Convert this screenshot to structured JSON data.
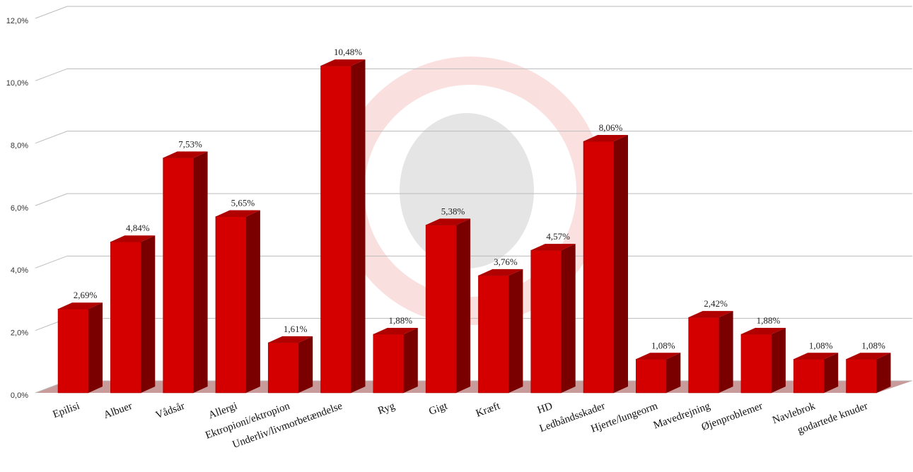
{
  "chart_data": {
    "type": "bar3d",
    "categories": [
      "Epilisi",
      "Albuer",
      "Vådsår",
      "Allergi",
      "Ektropioni/ektropion",
      "Underliv/livmorbetændelse",
      "Ryg",
      "Gigt",
      "Kræft",
      "HD",
      "Ledbåndsskader",
      "Hjerte/lungeorm",
      "Mavedrejning",
      "Øjenproblemer",
      "Navlebrok",
      "godartede knuder"
    ],
    "values": [
      2.69,
      4.84,
      7.53,
      5.65,
      1.61,
      10.48,
      1.88,
      5.38,
      3.76,
      4.57,
      8.06,
      1.08,
      2.42,
      1.88,
      1.08,
      1.08
    ],
    "value_labels": [
      "2,69%",
      "4,84%",
      "7,53%",
      "5,65%",
      "1,61%",
      "10,48%",
      "1,88%",
      "5,38%",
      "3,76%",
      "4,57%",
      "8,06%",
      "1,08%",
      "2,42%",
      "1,88%",
      "1,08%",
      "1,08%"
    ],
    "color": "#d40000",
    "ylim": [
      0,
      12
    ],
    "yticks": [
      {
        "value": 0,
        "label": "0,0%"
      },
      {
        "value": 2,
        "label": "2,0%"
      },
      {
        "value": 4,
        "label": "4,0%"
      },
      {
        "value": 6,
        "label": "6,0%"
      },
      {
        "value": 8,
        "label": "8,0%"
      },
      {
        "value": 10,
        "label": "10,0%"
      },
      {
        "value": 12,
        "label": "12,0%"
      }
    ],
    "grid": true
  }
}
